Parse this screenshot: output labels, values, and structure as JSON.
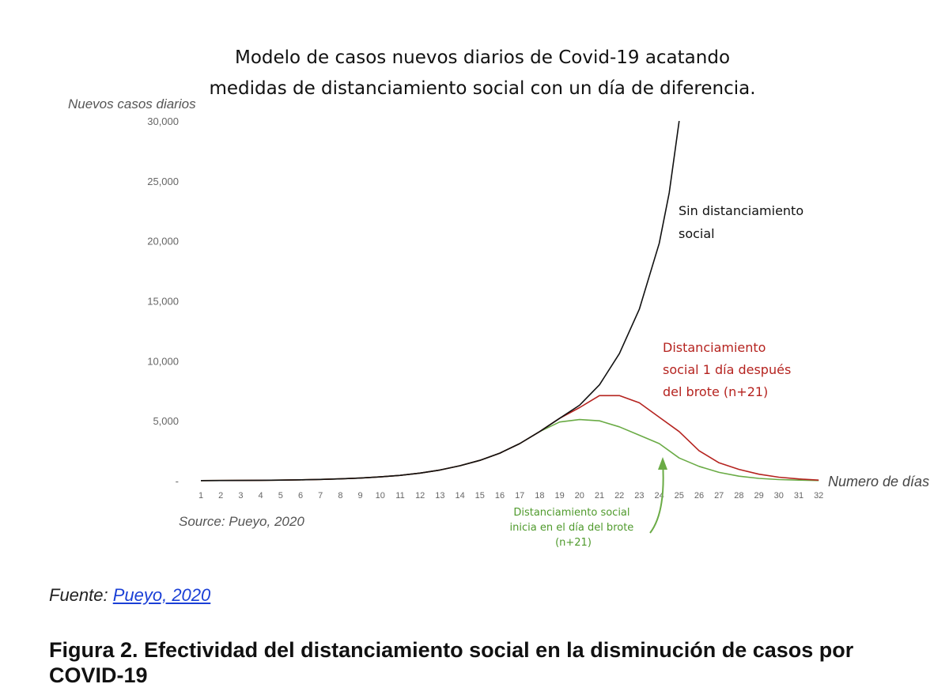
{
  "chart_data": {
    "type": "line",
    "title": [
      "Modelo de casos nuevos diarios de Covid-19 acatando",
      "medidas de distanciamiento social con un día de diferencia."
    ],
    "ylabel": "Nuevos casos diarios",
    "xlabel": "Numero de días",
    "ylim": [
      0,
      30000
    ],
    "yticks": [
      0,
      5000,
      10000,
      15000,
      20000,
      25000,
      30000
    ],
    "ytick_labels": [
      "-",
      "5,000",
      "10,000",
      "15,000",
      "20,000",
      "25,000",
      "30,000"
    ],
    "x": [
      1,
      2,
      3,
      4,
      5,
      6,
      7,
      8,
      9,
      10,
      11,
      12,
      13,
      14,
      15,
      16,
      17,
      18,
      19,
      20,
      21,
      22,
      23,
      24,
      25,
      26,
      27,
      28,
      29,
      30,
      31,
      32
    ],
    "grid": false,
    "series": [
      {
        "name": "Sin distanciamiento social",
        "color": "#111111",
        "x": [
          1,
          2,
          3,
          4,
          5,
          6,
          7,
          8,
          9,
          10,
          11,
          12,
          13,
          14,
          15,
          16,
          17,
          18,
          19,
          20,
          21,
          22,
          23,
          24,
          24.5,
          25
        ],
        "values": [
          14,
          20,
          28,
          40,
          56,
          80,
          112,
          160,
          224,
          320,
          448,
          640,
          900,
          1250,
          1700,
          2300,
          3100,
          4100,
          5200,
          6300,
          8000,
          10600,
          14300,
          19800,
          24000,
          30000
        ]
      },
      {
        "name": "Distanciamiento social 1 día después del brote (n+21)",
        "color": "#b5231f",
        "x": [
          1,
          2,
          3,
          4,
          5,
          6,
          7,
          8,
          9,
          10,
          11,
          12,
          13,
          14,
          15,
          16,
          17,
          18,
          19,
          20,
          21,
          22,
          23,
          24,
          25,
          26,
          27,
          28,
          29,
          30,
          31,
          32
        ],
        "values": [
          14,
          20,
          28,
          40,
          56,
          80,
          112,
          160,
          224,
          320,
          448,
          640,
          900,
          1250,
          1700,
          2300,
          3100,
          4100,
          5200,
          6100,
          7100,
          7100,
          6500,
          5300,
          4100,
          2500,
          1500,
          950,
          550,
          300,
          150,
          50
        ]
      },
      {
        "name": "Distanciamiento social inicia en el día del brote (n+21)",
        "color": "#6aab45",
        "x": [
          1,
          2,
          3,
          4,
          5,
          6,
          7,
          8,
          9,
          10,
          11,
          12,
          13,
          14,
          15,
          16,
          17,
          18,
          19,
          20,
          21,
          22,
          23,
          24,
          25,
          26,
          27,
          28,
          29,
          30,
          31,
          32
        ],
        "values": [
          14,
          20,
          28,
          40,
          56,
          80,
          112,
          160,
          224,
          320,
          448,
          640,
          900,
          1250,
          1700,
          2300,
          3100,
          4100,
          4900,
          5100,
          5000,
          4500,
          3800,
          3100,
          1900,
          1200,
          700,
          380,
          200,
          100,
          50,
          20
        ]
      }
    ],
    "annotations": {
      "black": [
        "Sin distanciamiento",
        "social"
      ],
      "red": [
        "Distanciamiento",
        "social 1 día después",
        "del brote (n+21)"
      ],
      "green": [
        "Distanciamiento social",
        "inicia en el día del brote",
        "(n+21)"
      ]
    },
    "source_note": "Source: Pueyo, 2020"
  },
  "fuente_prefix": "Fuente: ",
  "fuente_link": "Pueyo, 2020",
  "caption": "Figura 2. Efectividad del distanciamiento social en la disminución de casos por COVID-19"
}
